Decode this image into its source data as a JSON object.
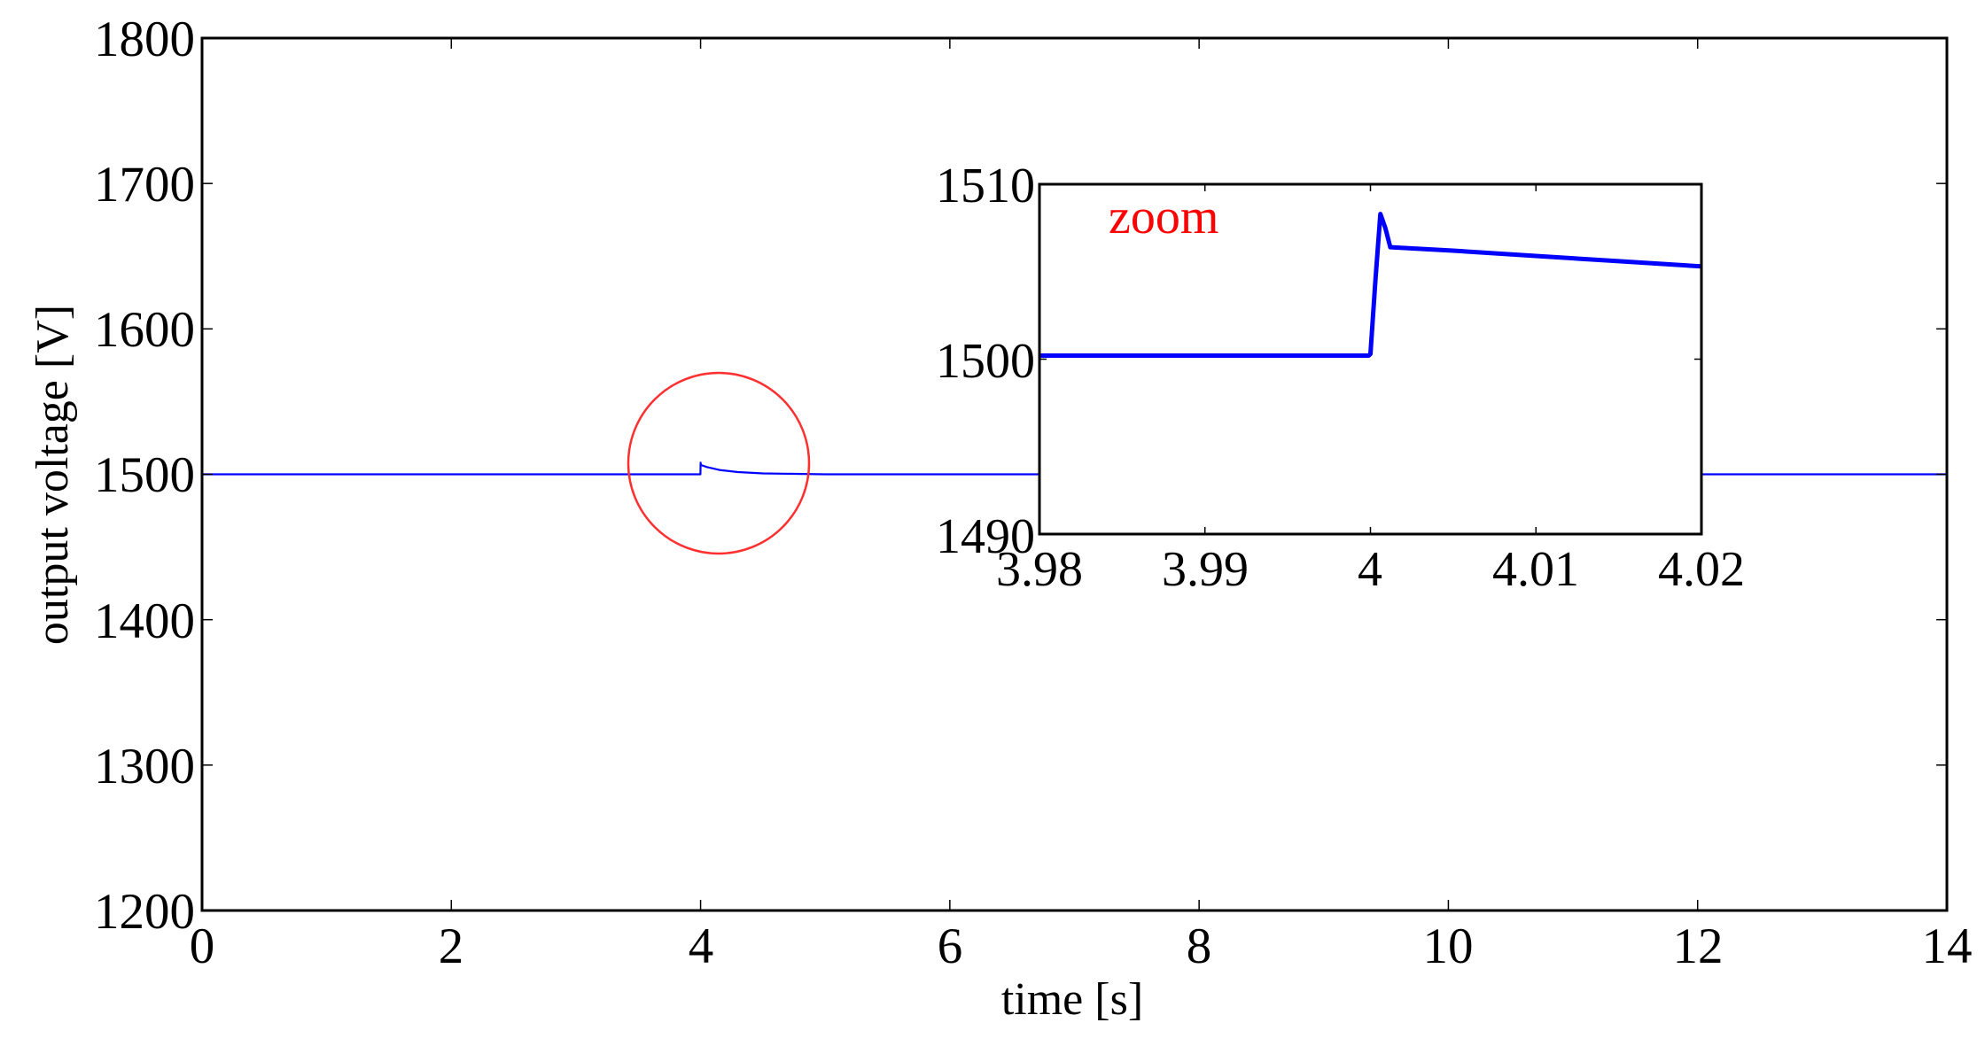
{
  "colors": {
    "series": "#0000ff",
    "annotation": "#ff0000",
    "axis": "#000000",
    "background": "#ffffff"
  },
  "main_axes": {
    "xlabel": "time [s]",
    "ylabel": "output voltage [V]",
    "xticks": [
      "0",
      "2",
      "4",
      "6",
      "8",
      "10",
      "12",
      "14"
    ],
    "yticks": [
      "1200",
      "1300",
      "1400",
      "1500",
      "1600",
      "1700",
      "1800"
    ]
  },
  "inset_axes": {
    "annotation": "zoom",
    "xticks": [
      "3.98",
      "3.99",
      "4",
      "4.01",
      "4.02"
    ],
    "yticks": [
      "1490",
      "1500",
      "1510"
    ]
  },
  "chart_data": [
    {
      "type": "line",
      "title": "",
      "xlabel": "time [s]",
      "ylabel": "output voltage [V]",
      "xlim": [
        0,
        14
      ],
      "ylim": [
        1200,
        1800
      ],
      "xticks": [
        0,
        2,
        4,
        6,
        8,
        10,
        12,
        14
      ],
      "yticks": [
        1200,
        1300,
        1400,
        1500,
        1600,
        1700,
        1800
      ],
      "grid": false,
      "legend": null,
      "series": [
        {
          "name": "output voltage",
          "color": "#0000ff",
          "x": [
            0,
            3.999,
            4.0,
            4.003,
            4.05,
            4.15,
            4.3,
            4.5,
            5.0,
            6,
            8,
            10,
            12,
            14
          ],
          "y": [
            1500,
            1500,
            1508,
            1506.4,
            1505,
            1503,
            1501.5,
            1500.6,
            1500,
            1500,
            1500,
            1500,
            1500,
            1500
          ]
        }
      ],
      "annotations": [
        {
          "type": "circle",
          "center": [
            4.15,
            1507
          ],
          "color": "#ff0000",
          "note": "region magnified in inset"
        }
      ]
    },
    {
      "type": "line",
      "title": "zoom",
      "xlabel": "",
      "ylabel": "",
      "xlim": [
        3.98,
        4.02
      ],
      "ylim": [
        1490,
        1510
      ],
      "xticks": [
        3.98,
        3.99,
        4.0,
        4.01,
        4.02
      ],
      "yticks": [
        1490,
        1500,
        1510
      ],
      "grid": false,
      "series": [
        {
          "name": "output voltage (zoom)",
          "color": "#0000ff",
          "x": [
            3.98,
            3.99,
            3.9999,
            4.0,
            4.0003,
            4.0006,
            4.0009,
            4.0012,
            4.005,
            4.01,
            4.015,
            4.02
          ],
          "y": [
            1500.2,
            1500.2,
            1500.2,
            1500.3,
            1504.5,
            1508.3,
            1507.5,
            1506.4,
            1506.2,
            1505.9,
            1505.6,
            1505.3
          ]
        }
      ]
    }
  ]
}
